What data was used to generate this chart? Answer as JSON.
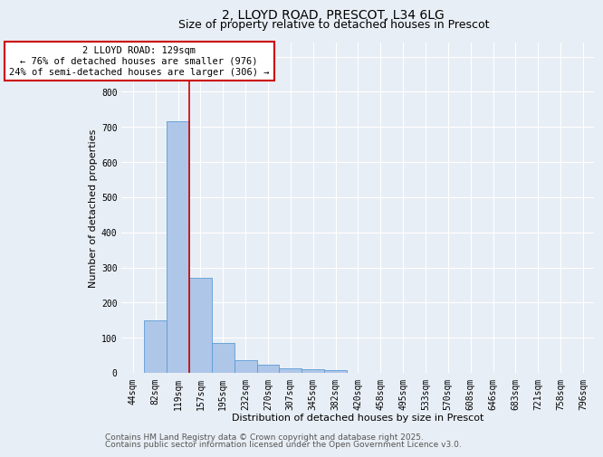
{
  "title1": "2, LLOYD ROAD, PRESCOT, L34 6LG",
  "title2": "Size of property relative to detached houses in Prescot",
  "xlabel": "Distribution of detached houses by size in Prescot",
  "ylabel": "Number of detached properties",
  "bar_labels": [
    "44sqm",
    "82sqm",
    "119sqm",
    "157sqm",
    "195sqm",
    "232sqm",
    "270sqm",
    "307sqm",
    "345sqm",
    "382sqm",
    "420sqm",
    "458sqm",
    "495sqm",
    "533sqm",
    "570sqm",
    "608sqm",
    "646sqm",
    "683sqm",
    "721sqm",
    "758sqm",
    "796sqm"
  ],
  "bar_values": [
    0,
    150,
    715,
    270,
    85,
    35,
    22,
    12,
    10,
    8,
    0,
    0,
    0,
    0,
    0,
    0,
    0,
    0,
    0,
    0,
    0
  ],
  "bar_color": "#aec6e8",
  "bar_edgecolor": "#5b9bd5",
  "red_line_x": 2.5,
  "annotation_text": "2 LLOYD ROAD: 129sqm\n← 76% of detached houses are smaller (976)\n24% of semi-detached houses are larger (306) →",
  "annotation_box_color": "#ffffff",
  "annotation_box_edgecolor": "#cc0000",
  "ylim": [
    0,
    940
  ],
  "yticks": [
    0,
    100,
    200,
    300,
    400,
    500,
    600,
    700,
    800,
    900
  ],
  "background_color": "#e8eef5",
  "plot_background": "#e8eef5",
  "footer1": "Contains HM Land Registry data © Crown copyright and database right 2025.",
  "footer2": "Contains public sector information licensed under the Open Government Licence v3.0.",
  "title_fontsize": 10,
  "subtitle_fontsize": 9,
  "axis_label_fontsize": 8,
  "tick_fontsize": 7,
  "annotation_fontsize": 7.5,
  "footer_fontsize": 6.5
}
